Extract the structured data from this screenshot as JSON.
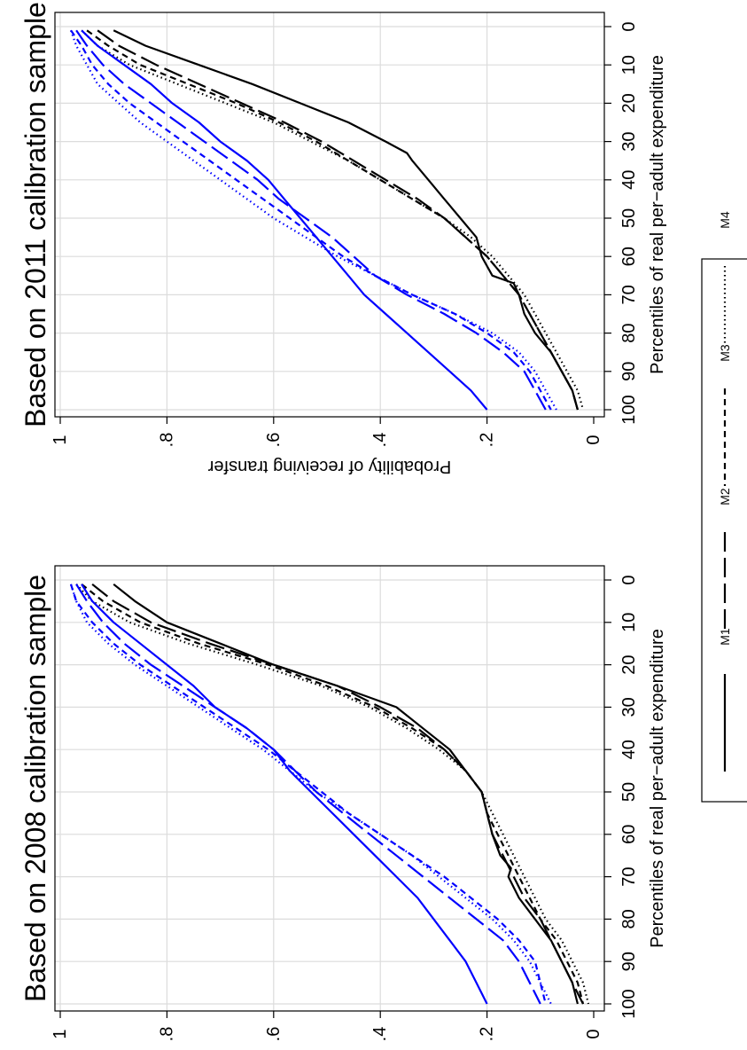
{
  "chart_data": [
    {
      "type": "line",
      "title": "Based on 2008 calibration sample",
      "xlabel": "Percentiles of real per−adult expenditure",
      "ylabel": "Probability of receiving transfer",
      "xlim": [
        0,
        100
      ],
      "ylim": [
        0,
        1
      ],
      "x_ticks": [
        "0",
        "10",
        "20",
        "30",
        "40",
        "50",
        "60",
        "70",
        "80",
        "90",
        "100"
      ],
      "y_ticks": [
        "0",
        ".2",
        ".4",
        ".6",
        ".8",
        "1"
      ],
      "grid": true,
      "series": [
        {
          "name": "M1",
          "group": "black",
          "color": "#000000",
          "style": "solid",
          "x": [
            1,
            5,
            10,
            15,
            20,
            25,
            30,
            35,
            40,
            45,
            50,
            55,
            60,
            65,
            68,
            70,
            75,
            80,
            85,
            90,
            95,
            100
          ],
          "y": [
            0.9,
            0.86,
            0.8,
            0.7,
            0.6,
            0.48,
            0.37,
            0.32,
            0.27,
            0.24,
            0.21,
            0.2,
            0.19,
            0.175,
            0.155,
            0.16,
            0.14,
            0.11,
            0.08,
            0.06,
            0.04,
            0.03
          ]
        },
        {
          "name": "M2",
          "group": "black",
          "color": "#000000",
          "style": "longdash",
          "x": [
            1,
            5,
            10,
            15,
            20,
            25,
            30,
            35,
            40,
            45,
            50,
            55,
            60,
            65,
            70,
            75,
            80,
            85,
            90,
            95,
            100
          ],
          "y": [
            0.94,
            0.9,
            0.83,
            0.72,
            0.6,
            0.48,
            0.4,
            0.33,
            0.28,
            0.24,
            0.21,
            0.2,
            0.19,
            0.17,
            0.15,
            0.13,
            0.1,
            0.08,
            0.06,
            0.04,
            0.02
          ]
        },
        {
          "name": "M3",
          "group": "black",
          "color": "#000000",
          "style": "shortdash",
          "x": [
            1,
            5,
            10,
            15,
            20,
            25,
            30,
            35,
            40,
            45,
            50,
            55,
            60,
            65,
            70,
            75,
            80,
            85,
            90,
            95,
            100
          ],
          "y": [
            0.96,
            0.92,
            0.85,
            0.74,
            0.61,
            0.5,
            0.41,
            0.34,
            0.28,
            0.24,
            0.21,
            0.2,
            0.18,
            0.16,
            0.14,
            0.12,
            0.1,
            0.07,
            0.05,
            0.03,
            0.02
          ]
        },
        {
          "name": "M4",
          "group": "black",
          "color": "#000000",
          "style": "dotted",
          "x": [
            1,
            5,
            10,
            15,
            20,
            25,
            30,
            35,
            40,
            45,
            50,
            55,
            60,
            65,
            70,
            75,
            80,
            85,
            90,
            95,
            100
          ],
          "y": [
            0.97,
            0.94,
            0.87,
            0.76,
            0.63,
            0.51,
            0.42,
            0.35,
            0.29,
            0.24,
            0.21,
            0.19,
            0.17,
            0.15,
            0.13,
            0.11,
            0.09,
            0.06,
            0.04,
            0.02,
            0.01
          ]
        },
        {
          "name": "M1",
          "group": "blue",
          "color": "#0000ff",
          "style": "solid",
          "x": [
            1,
            5,
            10,
            15,
            20,
            25,
            30,
            35,
            40,
            45,
            50,
            55,
            60,
            65,
            70,
            75,
            80,
            85,
            90,
            95,
            100
          ],
          "y": [
            0.96,
            0.94,
            0.9,
            0.85,
            0.8,
            0.75,
            0.71,
            0.65,
            0.6,
            0.57,
            0.53,
            0.49,
            0.45,
            0.41,
            0.37,
            0.33,
            0.3,
            0.27,
            0.24,
            0.22,
            0.2
          ]
        },
        {
          "name": "M2",
          "group": "blue",
          "color": "#0000ff",
          "style": "longdash",
          "x": [
            1,
            5,
            10,
            15,
            20,
            25,
            30,
            35,
            40,
            45,
            50,
            55,
            60,
            65,
            70,
            75,
            80,
            85,
            90,
            95,
            100
          ],
          "y": [
            0.97,
            0.95,
            0.92,
            0.88,
            0.83,
            0.77,
            0.71,
            0.65,
            0.6,
            0.56,
            0.52,
            0.47,
            0.42,
            0.37,
            0.32,
            0.27,
            0.22,
            0.17,
            0.14,
            0.12,
            0.1
          ]
        },
        {
          "name": "M3",
          "group": "blue",
          "color": "#0000ff",
          "style": "shortdash",
          "x": [
            1,
            5,
            10,
            15,
            20,
            25,
            30,
            35,
            40,
            45,
            50,
            55,
            60,
            65,
            70,
            75,
            80,
            85,
            90,
            95,
            100
          ],
          "y": [
            0.98,
            0.97,
            0.94,
            0.9,
            0.85,
            0.79,
            0.73,
            0.67,
            0.61,
            0.56,
            0.51,
            0.46,
            0.4,
            0.34,
            0.28,
            0.23,
            0.18,
            0.14,
            0.11,
            0.1,
            0.09
          ]
        },
        {
          "name": "M4",
          "group": "blue",
          "color": "#0000ff",
          "style": "dotted",
          "x": [
            1,
            5,
            10,
            15,
            20,
            25,
            30,
            35,
            40,
            45,
            50,
            55,
            60,
            65,
            70,
            75,
            80,
            85,
            90,
            95,
            100
          ],
          "y": [
            0.98,
            0.97,
            0.95,
            0.91,
            0.86,
            0.8,
            0.74,
            0.68,
            0.62,
            0.57,
            0.52,
            0.46,
            0.4,
            0.34,
            0.29,
            0.24,
            0.19,
            0.15,
            0.12,
            0.1,
            0.08
          ]
        }
      ]
    },
    {
      "type": "line",
      "title": "Based on 2011 calibration sample",
      "xlabel": "Percentiles of real per−adult expenditure",
      "ylabel": "Probability of receiving transfer",
      "xlim": [
        0,
        100
      ],
      "ylim": [
        0,
        1
      ],
      "x_ticks": [
        "0",
        "10",
        "20",
        "30",
        "40",
        "50",
        "60",
        "70",
        "80",
        "90",
        "100"
      ],
      "y_ticks": [
        "0",
        ".2",
        ".4",
        ".6",
        ".8",
        "1"
      ],
      "grid": true,
      "series": [
        {
          "name": "M1",
          "group": "black",
          "color": "#000000",
          "style": "solid",
          "x": [
            1,
            5,
            10,
            15,
            20,
            25,
            30,
            33,
            35,
            40,
            45,
            50,
            55,
            60,
            65,
            67,
            70,
            75,
            80,
            85,
            90,
            95,
            100
          ],
          "y": [
            0.9,
            0.84,
            0.74,
            0.64,
            0.55,
            0.46,
            0.39,
            0.35,
            0.34,
            0.31,
            0.28,
            0.25,
            0.22,
            0.21,
            0.19,
            0.15,
            0.14,
            0.13,
            0.11,
            0.08,
            0.06,
            0.04,
            0.03
          ]
        },
        {
          "name": "M2",
          "group": "black",
          "color": "#000000",
          "style": "longdash",
          "x": [
            1,
            5,
            10,
            15,
            20,
            25,
            30,
            35,
            40,
            45,
            50,
            55,
            60,
            65,
            70,
            75,
            80,
            85,
            90,
            95,
            100
          ],
          "y": [
            0.93,
            0.89,
            0.82,
            0.74,
            0.66,
            0.58,
            0.51,
            0.45,
            0.39,
            0.33,
            0.28,
            0.24,
            0.2,
            0.17,
            0.14,
            0.12,
            0.1,
            0.08,
            0.06,
            0.04,
            0.03
          ]
        },
        {
          "name": "M3",
          "group": "black",
          "color": "#000000",
          "style": "shortdash",
          "x": [
            1,
            5,
            10,
            15,
            20,
            25,
            30,
            35,
            40,
            45,
            50,
            55,
            60,
            65,
            70,
            75,
            80,
            85,
            90,
            95,
            100
          ],
          "y": [
            0.95,
            0.91,
            0.85,
            0.76,
            0.67,
            0.59,
            0.52,
            0.46,
            0.4,
            0.34,
            0.28,
            0.24,
            0.2,
            0.17,
            0.14,
            0.12,
            0.1,
            0.08,
            0.06,
            0.04,
            0.03
          ]
        },
        {
          "name": "M4",
          "group": "black",
          "color": "#000000",
          "style": "dotted",
          "x": [
            1,
            5,
            10,
            15,
            20,
            25,
            30,
            35,
            40,
            45,
            50,
            55,
            60,
            65,
            70,
            75,
            80,
            85,
            90,
            95,
            100
          ],
          "y": [
            0.96,
            0.93,
            0.87,
            0.78,
            0.69,
            0.6,
            0.53,
            0.46,
            0.4,
            0.34,
            0.28,
            0.23,
            0.19,
            0.16,
            0.13,
            0.11,
            0.09,
            0.07,
            0.05,
            0.03,
            0.02
          ]
        },
        {
          "name": "M1",
          "group": "blue",
          "color": "#0000ff",
          "style": "solid",
          "x": [
            1,
            5,
            10,
            15,
            20,
            25,
            30,
            35,
            40,
            45,
            50,
            55,
            60,
            65,
            70,
            75,
            80,
            85,
            90,
            95,
            100
          ],
          "y": [
            0.96,
            0.93,
            0.88,
            0.83,
            0.79,
            0.74,
            0.7,
            0.65,
            0.61,
            0.58,
            0.55,
            0.52,
            0.49,
            0.46,
            0.43,
            0.39,
            0.35,
            0.31,
            0.27,
            0.23,
            0.2
          ]
        },
        {
          "name": "M2",
          "group": "blue",
          "color": "#0000ff",
          "style": "longdash",
          "x": [
            1,
            5,
            10,
            15,
            20,
            25,
            30,
            35,
            40,
            45,
            50,
            55,
            60,
            65,
            70,
            75,
            80,
            85,
            90,
            95,
            100
          ],
          "y": [
            0.97,
            0.95,
            0.92,
            0.88,
            0.83,
            0.78,
            0.73,
            0.68,
            0.63,
            0.59,
            0.54,
            0.49,
            0.45,
            0.41,
            0.35,
            0.28,
            0.22,
            0.17,
            0.13,
            0.11,
            0.09
          ]
        },
        {
          "name": "M3",
          "group": "blue",
          "color": "#0000ff",
          "style": "shortdash",
          "x": [
            1,
            5,
            10,
            15,
            20,
            25,
            30,
            35,
            40,
            45,
            50,
            55,
            60,
            65,
            70,
            75,
            80,
            85,
            90,
            95,
            100
          ],
          "y": [
            0.98,
            0.96,
            0.94,
            0.91,
            0.87,
            0.82,
            0.77,
            0.72,
            0.67,
            0.62,
            0.57,
            0.52,
            0.47,
            0.41,
            0.34,
            0.26,
            0.2,
            0.15,
            0.12,
            0.1,
            0.08
          ]
        },
        {
          "name": "M4",
          "group": "blue",
          "color": "#0000ff",
          "style": "dotted",
          "x": [
            1,
            5,
            10,
            15,
            20,
            25,
            30,
            35,
            40,
            45,
            50,
            55,
            60,
            65,
            70,
            75,
            80,
            85,
            90,
            95,
            100
          ],
          "y": [
            0.98,
            0.97,
            0.95,
            0.93,
            0.89,
            0.85,
            0.8,
            0.75,
            0.7,
            0.65,
            0.6,
            0.54,
            0.48,
            0.41,
            0.34,
            0.26,
            0.19,
            0.14,
            0.11,
            0.09,
            0.07
          ]
        }
      ]
    }
  ],
  "legend": {
    "placement": "right",
    "entries": [
      {
        "label": "M1",
        "style": "solid"
      },
      {
        "label": "M2",
        "style": "longdash"
      },
      {
        "label": "M3",
        "style": "shortdash"
      },
      {
        "label": "M4",
        "style": "dotted"
      }
    ]
  }
}
